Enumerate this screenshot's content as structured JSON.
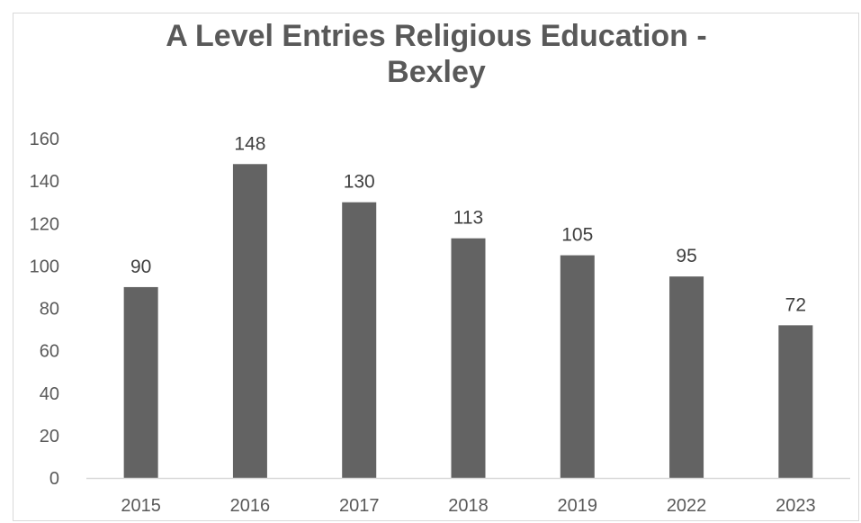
{
  "chart_data": {
    "type": "bar",
    "title": "A Level Entries Religious Education -\nBexley",
    "xlabel": "",
    "ylabel": "",
    "categories": [
      "2015",
      "2016",
      "2017",
      "2018",
      "2019",
      "2022",
      "2023"
    ],
    "values": [
      90,
      148,
      130,
      113,
      105,
      95,
      72
    ],
    "ylim": [
      0,
      160
    ],
    "yticks": [
      0,
      20,
      40,
      60,
      80,
      100,
      120,
      140,
      160
    ],
    "data_labels": true,
    "grid": false,
    "legend": "none",
    "colors": {
      "bar": "#636363",
      "axis": "#d9d9d9",
      "text": "#595959"
    }
  }
}
